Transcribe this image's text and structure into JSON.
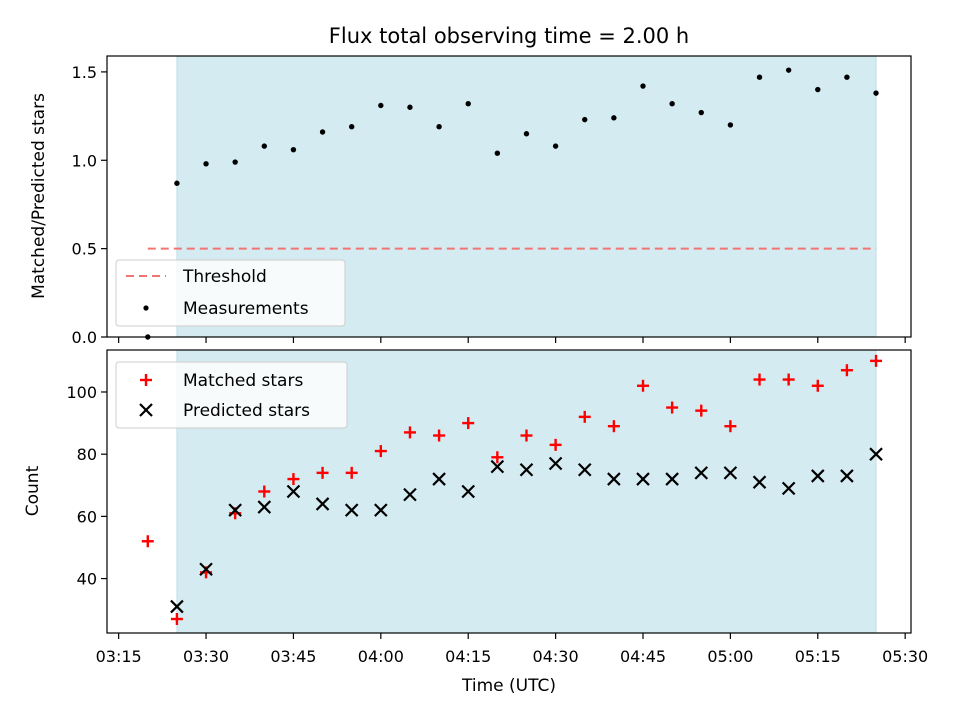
{
  "chart_data": {
    "title": "Flux total observing time = 2.00 h",
    "xlabel": "Time (UTC)",
    "x_ticks": [
      "03:15",
      "03:30",
      "03:45",
      "04:00",
      "04:15",
      "04:30",
      "04:45",
      "05:00",
      "05:15",
      "05:30"
    ],
    "xlim": [
      "03:13",
      "05:31"
    ],
    "shaded_span": [
      "03:25",
      "05:25"
    ],
    "panels": [
      {
        "type": "scatter",
        "ylabel": "Matched/Predicted stars",
        "ylim": [
          0,
          1.59
        ],
        "yticks": [
          "0.0",
          "0.5",
          "1.0",
          "1.5"
        ],
        "legend_position": "lower-left",
        "threshold": {
          "name": "Threshold",
          "value": 0.5,
          "from": "03:20",
          "to": "05:25",
          "color": "#f07575"
        },
        "measurements": {
          "name": "Measurements",
          "color": "#000000",
          "points": [
            {
              "t": "03:20",
              "v": 0.0
            },
            {
              "t": "03:25",
              "v": 0.87
            },
            {
              "t": "03:30",
              "v": 0.98
            },
            {
              "t": "03:35",
              "v": 0.99
            },
            {
              "t": "03:40",
              "v": 1.08
            },
            {
              "t": "03:45",
              "v": 1.06
            },
            {
              "t": "03:50",
              "v": 1.16
            },
            {
              "t": "03:55",
              "v": 1.19
            },
            {
              "t": "04:00",
              "v": 1.31
            },
            {
              "t": "04:05",
              "v": 1.3
            },
            {
              "t": "04:10",
              "v": 1.19
            },
            {
              "t": "04:15",
              "v": 1.32
            },
            {
              "t": "04:20",
              "v": 1.04
            },
            {
              "t": "04:25",
              "v": 1.15
            },
            {
              "t": "04:30",
              "v": 1.08
            },
            {
              "t": "04:35",
              "v": 1.23
            },
            {
              "t": "04:40",
              "v": 1.24
            },
            {
              "t": "04:45",
              "v": 1.42
            },
            {
              "t": "04:50",
              "v": 1.32
            },
            {
              "t": "04:55",
              "v": 1.27
            },
            {
              "t": "05:00",
              "v": 1.2
            },
            {
              "t": "05:05",
              "v": 1.47
            },
            {
              "t": "05:10",
              "v": 1.51
            },
            {
              "t": "05:15",
              "v": 1.4
            },
            {
              "t": "05:20",
              "v": 1.47
            },
            {
              "t": "05:25",
              "v": 1.38
            }
          ]
        }
      },
      {
        "type": "scatter",
        "ylabel": "Count",
        "ylim": [
          22.5,
          113.5
        ],
        "yticks": [
          "40",
          "60",
          "80",
          "100"
        ],
        "legend_position": "upper-left",
        "series": [
          {
            "name": "Matched stars",
            "marker": "+",
            "color": "#ff0000",
            "points": [
              {
                "t": "03:20",
                "v": 52
              },
              {
                "t": "03:25",
                "v": 27
              },
              {
                "t": "03:30",
                "v": 42
              },
              {
                "t": "03:35",
                "v": 61
              },
              {
                "t": "03:40",
                "v": 68
              },
              {
                "t": "03:45",
                "v": 72
              },
              {
                "t": "03:50",
                "v": 74
              },
              {
                "t": "03:55",
                "v": 74
              },
              {
                "t": "04:00",
                "v": 81
              },
              {
                "t": "04:05",
                "v": 87
              },
              {
                "t": "04:10",
                "v": 86
              },
              {
                "t": "04:15",
                "v": 90
              },
              {
                "t": "04:20",
                "v": 79
              },
              {
                "t": "04:25",
                "v": 86
              },
              {
                "t": "04:30",
                "v": 83
              },
              {
                "t": "04:35",
                "v": 92
              },
              {
                "t": "04:40",
                "v": 89
              },
              {
                "t": "04:45",
                "v": 102
              },
              {
                "t": "04:50",
                "v": 95
              },
              {
                "t": "04:55",
                "v": 94
              },
              {
                "t": "05:00",
                "v": 89
              },
              {
                "t": "05:05",
                "v": 104
              },
              {
                "t": "05:10",
                "v": 104
              },
              {
                "t": "05:15",
                "v": 102
              },
              {
                "t": "05:20",
                "v": 107
              },
              {
                "t": "05:25",
                "v": 110
              }
            ]
          },
          {
            "name": "Predicted stars",
            "marker": "x",
            "color": "#000000",
            "points": [
              {
                "t": "03:25",
                "v": 31
              },
              {
                "t": "03:30",
                "v": 43
              },
              {
                "t": "03:35",
                "v": 62
              },
              {
                "t": "03:40",
                "v": 63
              },
              {
                "t": "03:45",
                "v": 68
              },
              {
                "t": "03:50",
                "v": 64
              },
              {
                "t": "03:55",
                "v": 62
              },
              {
                "t": "04:00",
                "v": 62
              },
              {
                "t": "04:05",
                "v": 67
              },
              {
                "t": "04:10",
                "v": 72
              },
              {
                "t": "04:15",
                "v": 68
              },
              {
                "t": "04:20",
                "v": 76
              },
              {
                "t": "04:25",
                "v": 75
              },
              {
                "t": "04:30",
                "v": 77
              },
              {
                "t": "04:35",
                "v": 75
              },
              {
                "t": "04:40",
                "v": 72
              },
              {
                "t": "04:45",
                "v": 72
              },
              {
                "t": "04:50",
                "v": 72
              },
              {
                "t": "04:55",
                "v": 74
              },
              {
                "t": "05:00",
                "v": 74
              },
              {
                "t": "05:05",
                "v": 71
              },
              {
                "t": "05:10",
                "v": 69
              },
              {
                "t": "05:15",
                "v": 73
              },
              {
                "t": "05:20",
                "v": 73
              },
              {
                "t": "05:25",
                "v": 80
              }
            ]
          }
        ]
      }
    ],
    "colors": {
      "span": "#d4ebf1",
      "span_edge": "#bfe0e9",
      "frame": "#000000"
    }
  }
}
